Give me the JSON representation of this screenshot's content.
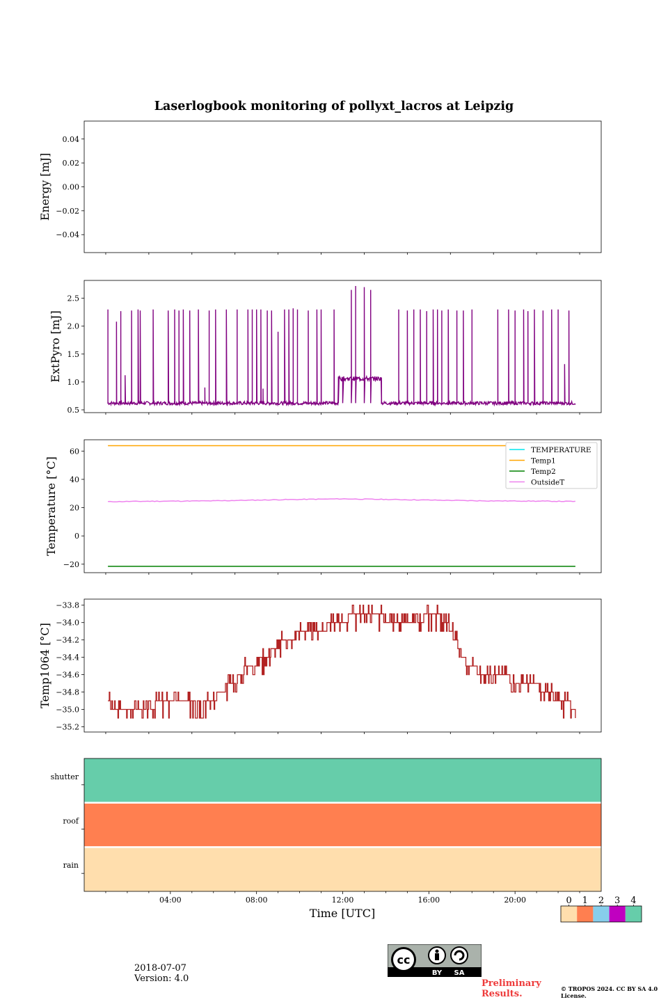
{
  "title": "Laserlogbook monitoring of pollyxt_lacros at Leipzig",
  "xlabel": "Time [UTC]",
  "date": "2018-07-07",
  "version": "Version: 4.0",
  "preliminary": "Preliminary Results.",
  "copyright": "© TROPOS 2024. CC BY SA 4.0 License.",
  "license_logo": {
    "by": "BY",
    "sa": "SA"
  },
  "chart_data": [
    {
      "type": "line",
      "ylabel": "Energy [mJ]",
      "xlim": [
        0,
        24
      ],
      "ylim": [
        -0.055,
        0.055
      ],
      "yticks": [
        0.04,
        0.02,
        0.0,
        -0.02,
        -0.04
      ],
      "ytick_labels": [
        "0.04",
        "0.02",
        "0.00",
        "−0.02",
        "−0.04"
      ],
      "series": []
    },
    {
      "type": "line",
      "ylabel": "ExtPyro [mJ]",
      "xlim": [
        0,
        24
      ],
      "ylim": [
        0.45,
        2.82
      ],
      "yticks": [
        0.5,
        1.0,
        1.5,
        2.0,
        2.5
      ],
      "ytick_labels": [
        "0.5",
        "1.0",
        "1.5",
        "2.0",
        "2.5"
      ],
      "series": [
        {
          "color": "#800080",
          "baseline": 0.62,
          "spikes": [
            [
              1.1,
              2.3
            ],
            [
              1.5,
              2.08
            ],
            [
              1.7,
              2.27
            ],
            [
              1.9,
              1.12
            ],
            [
              2.2,
              2.28
            ],
            [
              2.5,
              2.3
            ],
            [
              2.6,
              2.28
            ],
            [
              3.2,
              2.3
            ],
            [
              3.9,
              2.28
            ],
            [
              4.2,
              2.3
            ],
            [
              4.4,
              2.28
            ],
            [
              4.6,
              2.3
            ],
            [
              4.9,
              2.28
            ],
            [
              5.3,
              2.3
            ],
            [
              5.6,
              0.9
            ],
            [
              5.8,
              2.28
            ],
            [
              6.1,
              2.3
            ],
            [
              6.6,
              2.3
            ],
            [
              7.1,
              2.3
            ],
            [
              7.6,
              2.3
            ],
            [
              7.8,
              2.3
            ],
            [
              8.0,
              2.3
            ],
            [
              8.2,
              2.3
            ],
            [
              8.3,
              0.88
            ],
            [
              8.5,
              2.28
            ],
            [
              8.7,
              2.28
            ],
            [
              9.0,
              1.9
            ],
            [
              9.3,
              2.3
            ],
            [
              9.5,
              2.3
            ],
            [
              9.7,
              2.32
            ],
            [
              9.9,
              2.3
            ],
            [
              10.4,
              2.28
            ],
            [
              10.8,
              2.3
            ],
            [
              11.0,
              2.3
            ],
            [
              11.6,
              2.3
            ],
            [
              11.8,
              1.08
            ],
            [
              12.0,
              1.08
            ],
            [
              12.4,
              2.65
            ],
            [
              12.6,
              2.72
            ],
            [
              13.0,
              2.7
            ],
            [
              13.3,
              2.65
            ],
            [
              13.8,
              1.08
            ],
            [
              14.6,
              2.3
            ],
            [
              15.0,
              2.28
            ],
            [
              15.3,
              2.3
            ],
            [
              15.6,
              2.3
            ],
            [
              15.9,
              2.27
            ],
            [
              16.2,
              2.3
            ],
            [
              16.4,
              2.3
            ],
            [
              16.6,
              2.28
            ],
            [
              16.9,
              2.3
            ],
            [
              17.3,
              2.28
            ],
            [
              17.6,
              2.28
            ],
            [
              18.0,
              2.3
            ],
            [
              19.2,
              2.3
            ],
            [
              19.7,
              2.3
            ],
            [
              20.0,
              2.28
            ],
            [
              20.4,
              2.3
            ],
            [
              20.6,
              2.27
            ],
            [
              20.9,
              2.3
            ],
            [
              21.3,
              2.28
            ],
            [
              21.7,
              2.3
            ],
            [
              22.0,
              2.3
            ],
            [
              22.3,
              1.32
            ],
            [
              22.5,
              2.28
            ]
          ],
          "plateau": {
            "x": [
              11.8,
              13.8
            ],
            "y": 1.06
          }
        }
      ]
    },
    {
      "type": "line",
      "ylabel": "Temperature [°C]",
      "xlim": [
        0,
        24
      ],
      "ylim": [
        -26,
        68
      ],
      "yticks": [
        60,
        40,
        20,
        0,
        -20
      ],
      "ytick_labels": [
        "60",
        "40",
        "20",
        "0",
        "−20"
      ],
      "legend": "top-right",
      "series": [
        {
          "name": "TEMPERATURE",
          "color": "#00e5ee",
          "x": [],
          "y": []
        },
        {
          "name": "Temp1",
          "color": "#ffa500",
          "x": [
            1.1,
            22.8
          ],
          "y": [
            63.8,
            63.8
          ]
        },
        {
          "name": "Temp2",
          "color": "#008000",
          "x": [
            1.1,
            22.8
          ],
          "y": [
            -21.5,
            -21.5
          ]
        },
        {
          "name": "OutsideT",
          "color": "#ee82ee",
          "x": [
            1.1,
            3,
            6,
            9,
            12,
            15,
            18,
            21,
            22.8
          ],
          "y": [
            24.2,
            24.5,
            24.8,
            25.6,
            26.2,
            25.6,
            24.9,
            24.6,
            24.4
          ]
        }
      ]
    },
    {
      "type": "line",
      "ylabel": "Temp1064 [°C]",
      "xlim": [
        0,
        24
      ],
      "ylim": [
        -35.26,
        -33.73
      ],
      "yticks": [
        -33.8,
        -34.0,
        -34.2,
        -34.4,
        -34.6,
        -34.8,
        -35.0,
        -35.2
      ],
      "ytick_labels": [
        "−33.8",
        "−34.0",
        "−34.2",
        "−34.4",
        "−34.6",
        "−34.8",
        "−35.0",
        "−35.2"
      ],
      "series": [
        {
          "color": "#b22222",
          "x": [
            1.1,
            1.5,
            2.5,
            3.5,
            4.5,
            5.5,
            6.0,
            6.5,
            7.0,
            7.5,
            8.0,
            8.5,
            9.0,
            9.5,
            10.0,
            10.5,
            11.0,
            11.5,
            12.0,
            12.5,
            13.0,
            13.5,
            14.0,
            14.5,
            15.0,
            15.5,
            16.0,
            16.5,
            17.0,
            17.3,
            17.6,
            18.0,
            18.5,
            19.0,
            19.5,
            20.0,
            20.5,
            21.0,
            21.5,
            22.0,
            22.8
          ],
          "y": [
            -34.95,
            -35.05,
            -35.05,
            -34.95,
            -34.95,
            -34.95,
            -34.9,
            -34.8,
            -34.7,
            -34.55,
            -34.5,
            -34.4,
            -34.3,
            -34.2,
            -34.15,
            -34.1,
            -34.1,
            -34.05,
            -34.0,
            -33.95,
            -33.9,
            -33.9,
            -34.0,
            -34.05,
            -34.05,
            -34.0,
            -33.95,
            -33.95,
            -34.1,
            -34.25,
            -34.45,
            -34.55,
            -34.6,
            -34.65,
            -34.65,
            -34.7,
            -34.75,
            -34.75,
            -34.85,
            -34.9,
            -35.0
          ]
        }
      ]
    },
    {
      "type": "heatmap",
      "xlim": [
        0,
        24
      ],
      "xticks": [
        4,
        8,
        12,
        16,
        20
      ],
      "xtick_labels": [
        "04:00",
        "08:00",
        "12:00",
        "16:00",
        "20:00"
      ],
      "rows": [
        {
          "label": "shutter",
          "value": 4
        },
        {
          "label": "roof",
          "value": 1
        },
        {
          "label": "rain",
          "value": 0
        }
      ],
      "colorbar": {
        "ticks": [
          "0",
          "1",
          "2",
          "3",
          "4"
        ],
        "colors": [
          "#ffdead",
          "#ff7f50",
          "#87ceeb",
          "#c000c0",
          "#66cdaa"
        ]
      }
    }
  ]
}
